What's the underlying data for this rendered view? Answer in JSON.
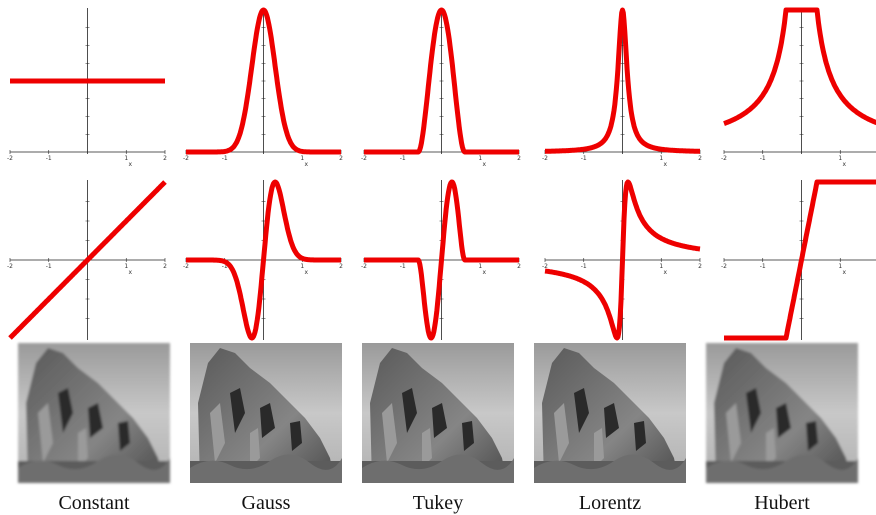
{
  "columns": [
    {
      "caption": "Constant"
    },
    {
      "caption": "Gauss"
    },
    {
      "caption": "Tukey"
    },
    {
      "caption": "Lorentz"
    },
    {
      "caption": "Hubert"
    }
  ],
  "tick_labels": [
    "-2",
    "-1",
    "1",
    "2"
  ],
  "axis_label": "x"
}
